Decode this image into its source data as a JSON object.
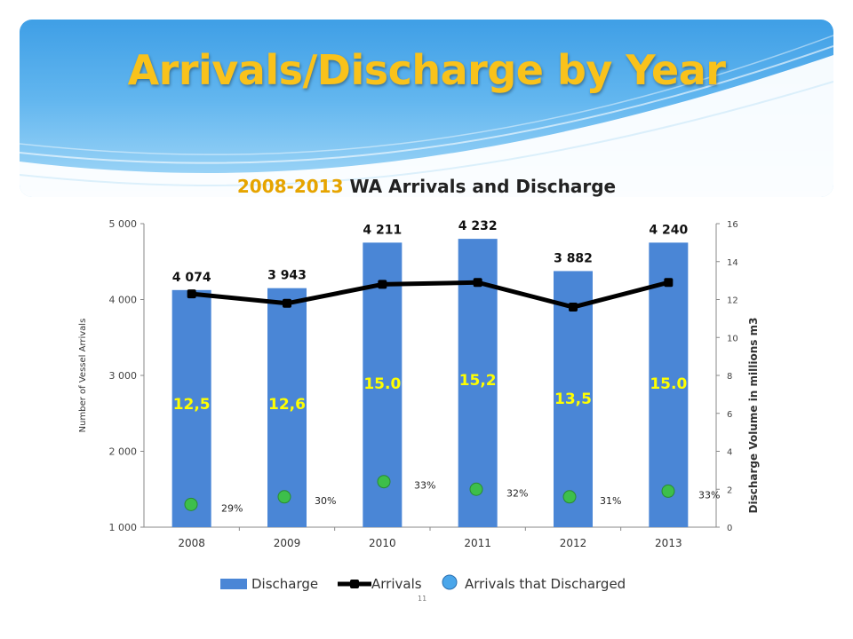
{
  "slide": {
    "title": "Arrivals/Discharge by Year",
    "page_number": "11"
  },
  "colors": {
    "title": "#f9c21b",
    "bar": "#4a86d6",
    "line": "#000000",
    "marker": "#3dbf4b",
    "bar_label": "#ffff00",
    "header": "#4aa6ea"
  },
  "chart_data": {
    "type": "bar",
    "title_years": "2008-2013",
    "title_rest": "WA Arrivals and Discharge",
    "categories": [
      "2008",
      "2009",
      "2010",
      "2011",
      "2012",
      "2013"
    ],
    "series": [
      {
        "name": "Discharge",
        "axis": "right",
        "values": [
          12.5,
          12.6,
          15.0,
          15.2,
          13.5,
          15.0
        ],
        "labels": [
          "12,5",
          "12,6",
          "15.0",
          "15,2",
          "13,5",
          "15.0"
        ]
      },
      {
        "name": "Arrivals",
        "axis": "left",
        "type": "line",
        "values": [
          4074,
          3943,
          4211,
          4232,
          3882,
          4240
        ],
        "labels": [
          "4 074",
          "3 943",
          "4 211",
          "4 232",
          "3 882",
          "4 240"
        ],
        "point_levels_right_axis": [
          12.3,
          11.8,
          12.8,
          12.9,
          11.6,
          12.9
        ]
      },
      {
        "name": "Arrivals that Discharged",
        "axis": "right",
        "type": "scatter",
        "values": [
          1.2,
          1.6,
          2.4,
          2.0,
          1.6,
          1.9
        ],
        "labels": [
          "29%",
          "30%",
          "33%",
          "32%",
          "31%",
          "33%"
        ]
      }
    ],
    "ylabel": "Number of Vessel Arrivals",
    "y2label": "Discharge Volume in millions m3",
    "ylim": [
      1000,
      5000
    ],
    "y2lim": [
      0,
      16
    ],
    "yticks": [
      "1 000",
      "2 000",
      "3 000",
      "4 000",
      "5 000"
    ],
    "y2ticks": [
      "0",
      "2",
      "4",
      "6",
      "8",
      "10",
      "12",
      "14",
      "16"
    ],
    "grid": false,
    "legend_position": "bottom"
  }
}
